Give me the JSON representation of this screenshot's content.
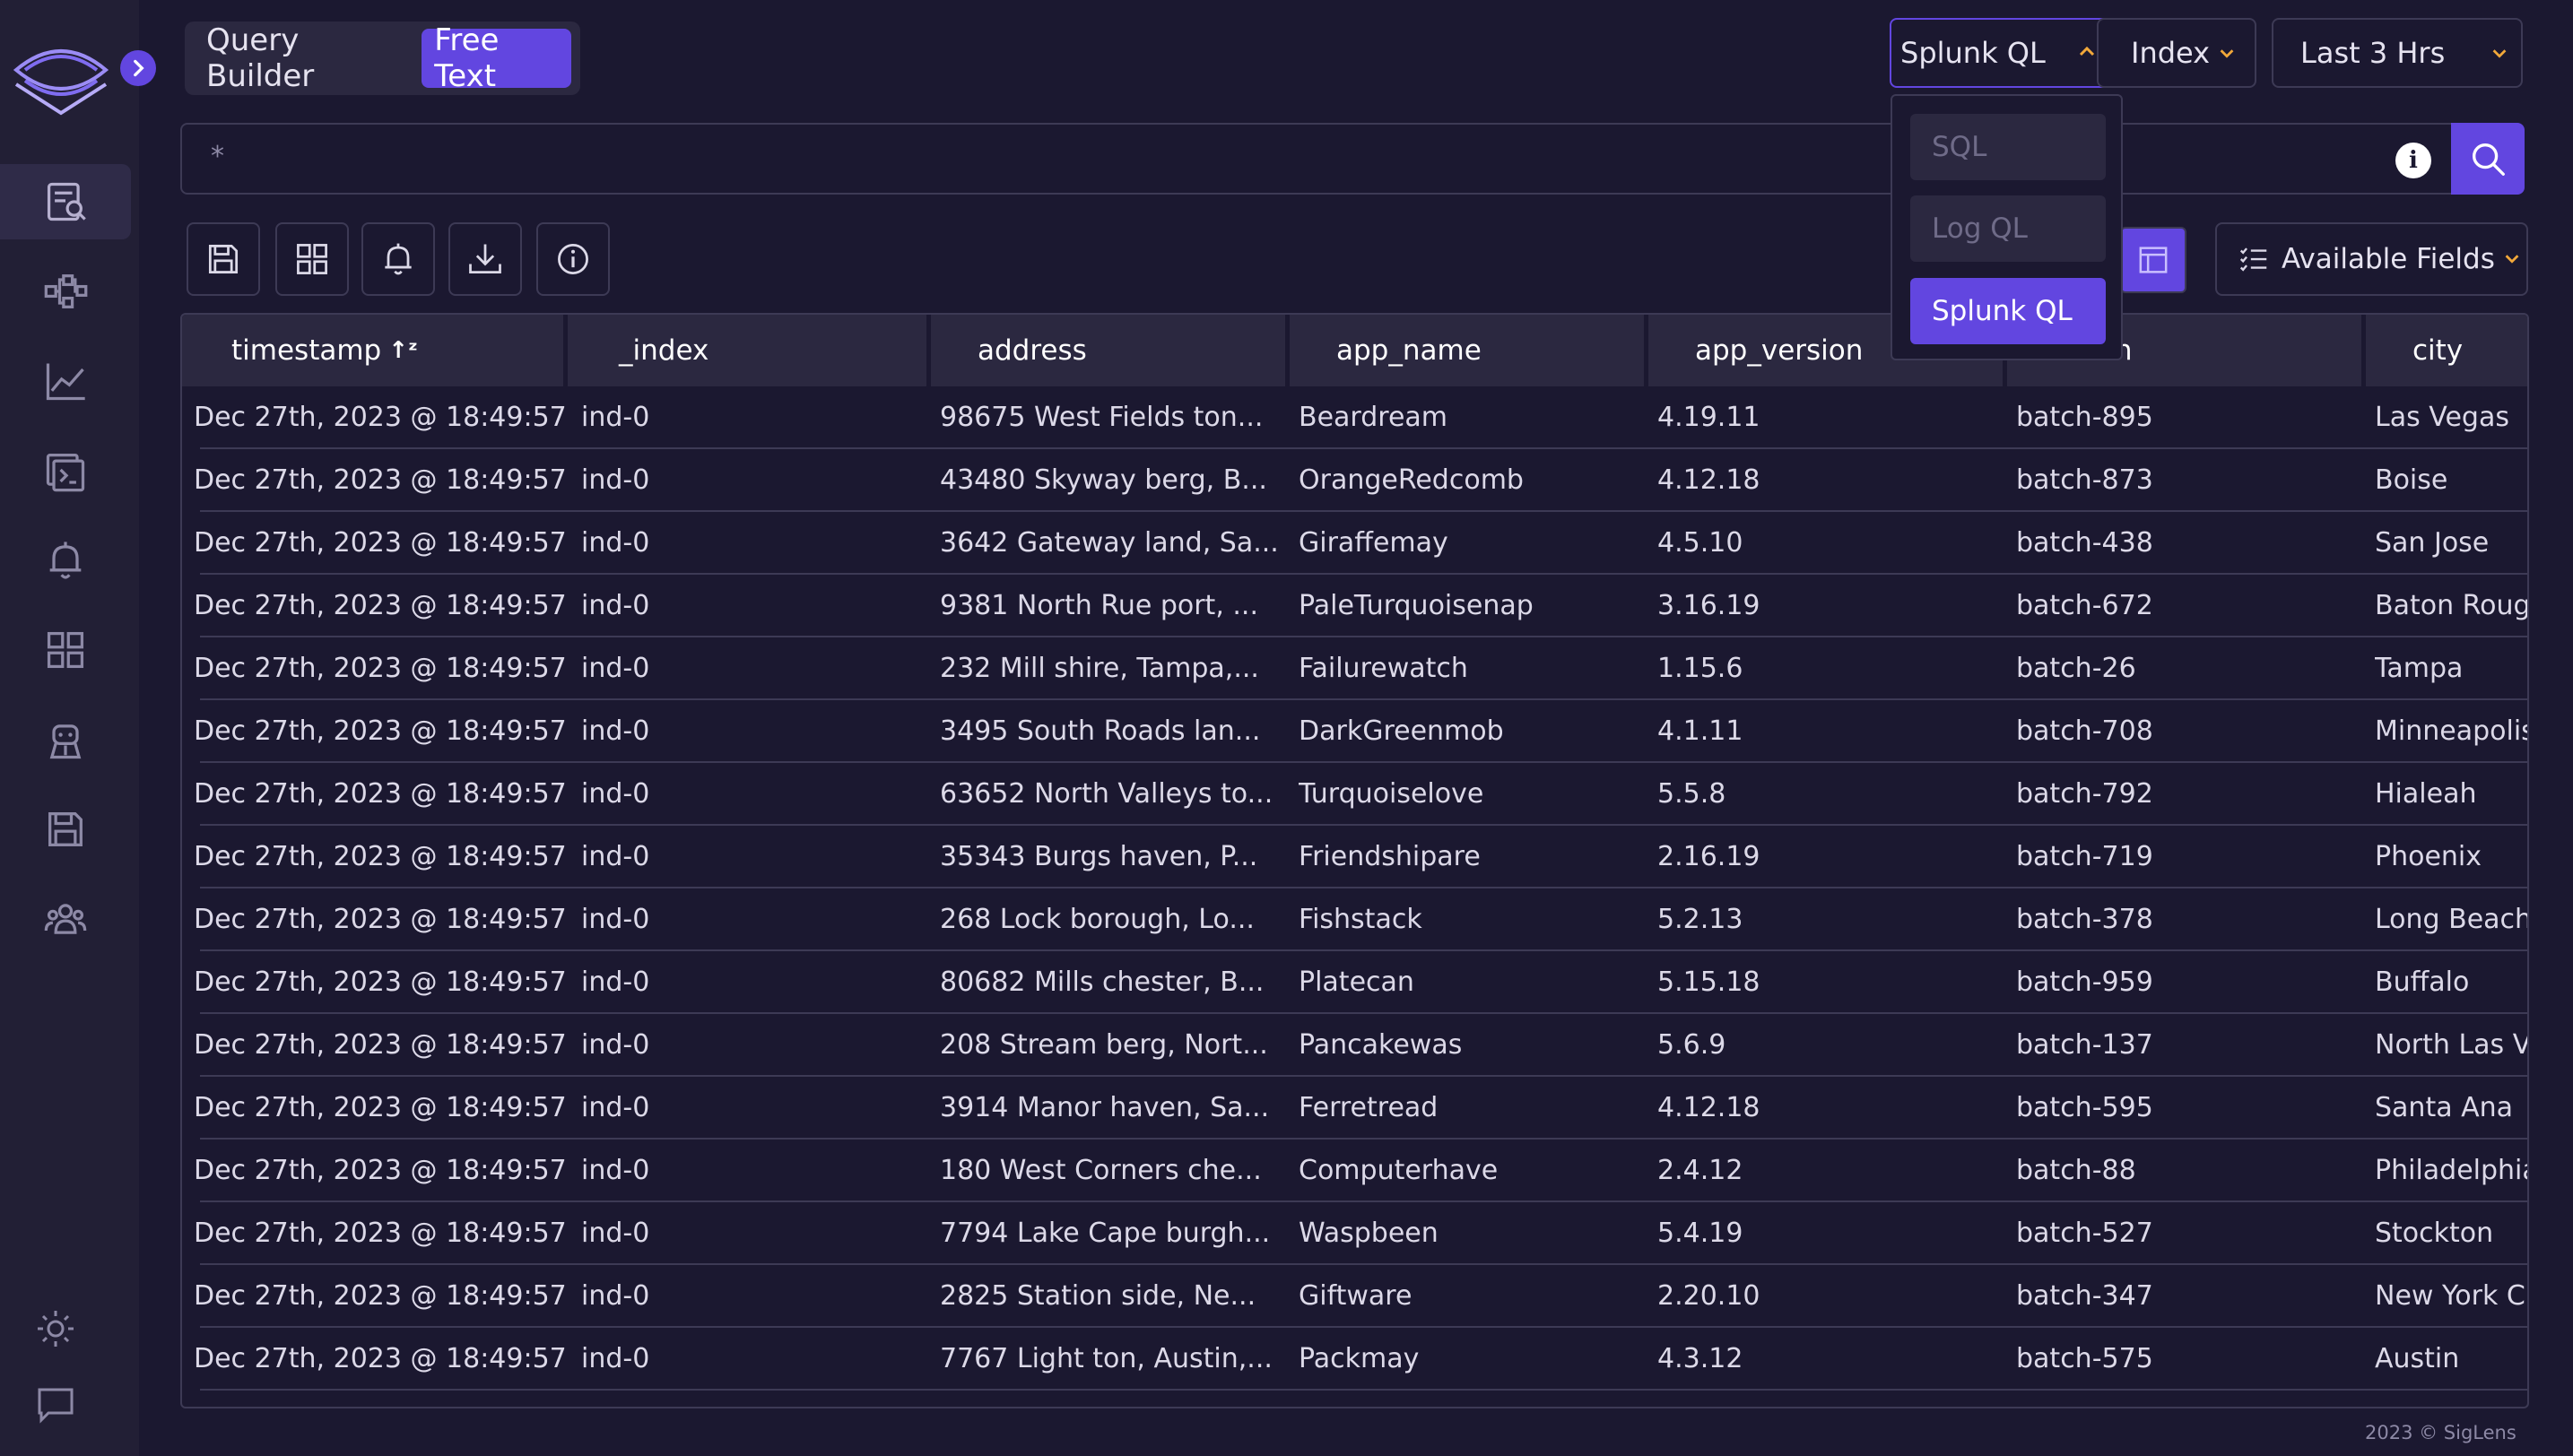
{
  "sidebar": {
    "nav_items": [
      {
        "name": "search-logs",
        "icon": "search-logs-icon",
        "active": true
      },
      {
        "name": "service-map",
        "icon": "hierarchy-icon",
        "active": false
      },
      {
        "name": "metrics",
        "icon": "line-chart-icon",
        "active": false
      },
      {
        "name": "live-tail",
        "icon": "terminal-icon",
        "active": false
      },
      {
        "name": "alerts",
        "icon": "bell-icon",
        "active": false
      },
      {
        "name": "dashboards",
        "icon": "grid-icon",
        "active": false
      },
      {
        "name": "ingestion",
        "icon": "robot-icon",
        "active": false
      },
      {
        "name": "saved-queries",
        "icon": "floppy-icon",
        "active": false
      },
      {
        "name": "my-org",
        "icon": "team-icon",
        "active": false
      }
    ],
    "bottom_items": [
      {
        "name": "theme-toggle",
        "icon": "sun-icon"
      },
      {
        "name": "feedback",
        "icon": "chat-icon"
      }
    ]
  },
  "header": {
    "modes": [
      "Query Builder",
      "Free Text"
    ],
    "active_mode": "Free Text",
    "query_language": "Splunk QL",
    "index_label": "Index",
    "time_range": "Last 3 Hrs",
    "query_language_options": [
      "SQL",
      "Log QL",
      "Splunk QL"
    ]
  },
  "search": {
    "query": "*"
  },
  "toolbar": {
    "available_fields_label": "Available Fields"
  },
  "table": {
    "columns": [
      "timestamp",
      "_index",
      "address",
      "app_name",
      "app_version",
      "batch",
      "city"
    ],
    "rows": [
      [
        "Dec 27th, 2023 @ 18:49:57",
        "ind-0",
        "98675 West Fields ton...",
        "Beardream",
        "4.19.11",
        "batch-895",
        "Las Vegas"
      ],
      [
        "Dec 27th, 2023 @ 18:49:57",
        "ind-0",
        "43480 Skyway berg, B...",
        "OrangeRedcomb",
        "4.12.18",
        "batch-873",
        "Boise"
      ],
      [
        "Dec 27th, 2023 @ 18:49:57",
        "ind-0",
        "3642 Gateway land, Sa...",
        "Giraffemay",
        "4.5.10",
        "batch-438",
        "San Jose"
      ],
      [
        "Dec 27th, 2023 @ 18:49:57",
        "ind-0",
        "9381 North Rue port, ...",
        "PaleTurquoisenap",
        "3.16.19",
        "batch-672",
        "Baton Rouge"
      ],
      [
        "Dec 27th, 2023 @ 18:49:57",
        "ind-0",
        "232 Mill shire, Tampa,...",
        "Failurewatch",
        "1.15.6",
        "batch-26",
        "Tampa"
      ],
      [
        "Dec 27th, 2023 @ 18:49:57",
        "ind-0",
        "3495 South Roads lan...",
        "DarkGreenmob",
        "4.1.11",
        "batch-708",
        "Minneapolis"
      ],
      [
        "Dec 27th, 2023 @ 18:49:57",
        "ind-0",
        "63652 North Valleys to...",
        "Turquoiselove",
        "5.5.8",
        "batch-792",
        "Hialeah"
      ],
      [
        "Dec 27th, 2023 @ 18:49:57",
        "ind-0",
        "35343 Burgs haven, P...",
        "Friendshipare",
        "2.16.19",
        "batch-719",
        "Phoenix"
      ],
      [
        "Dec 27th, 2023 @ 18:49:57",
        "ind-0",
        "268 Lock borough, Lo...",
        "Fishstack",
        "5.2.13",
        "batch-378",
        "Long Beach"
      ],
      [
        "Dec 27th, 2023 @ 18:49:57",
        "ind-0",
        "80682 Mills chester, B...",
        "Platecan",
        "5.15.18",
        "batch-959",
        "Buffalo"
      ],
      [
        "Dec 27th, 2023 @ 18:49:57",
        "ind-0",
        "208 Stream berg, Nort...",
        "Pancakewas",
        "5.6.9",
        "batch-137",
        "North Las Vegas"
      ],
      [
        "Dec 27th, 2023 @ 18:49:57",
        "ind-0",
        "3914 Manor haven, Sa...",
        "Ferretread",
        "4.12.18",
        "batch-595",
        "Santa Ana"
      ],
      [
        "Dec 27th, 2023 @ 18:49:57",
        "ind-0",
        "180 West Corners che...",
        "Computerhave",
        "2.4.12",
        "batch-88",
        "Philadelphia"
      ],
      [
        "Dec 27th, 2023 @ 18:49:57",
        "ind-0",
        "7794 Lake Cape burgh...",
        "Waspbeen",
        "5.4.19",
        "batch-527",
        "Stockton"
      ],
      [
        "Dec 27th, 2023 @ 18:49:57",
        "ind-0",
        "2825 Station side, Ne...",
        "Giftware",
        "2.20.10",
        "batch-347",
        "New York City"
      ],
      [
        "Dec 27th, 2023 @ 18:49:57",
        "ind-0",
        "7767 Light ton, Austin,...",
        "Packmay",
        "4.3.12",
        "batch-575",
        "Austin"
      ]
    ]
  },
  "footer": {
    "text": "2023 © SigLens"
  },
  "colors": {
    "background": "#1b1830",
    "sidebar": "#221f35",
    "accent": "#6246e0",
    "chevron": "#f2a83a",
    "border": "#3d3a55"
  }
}
